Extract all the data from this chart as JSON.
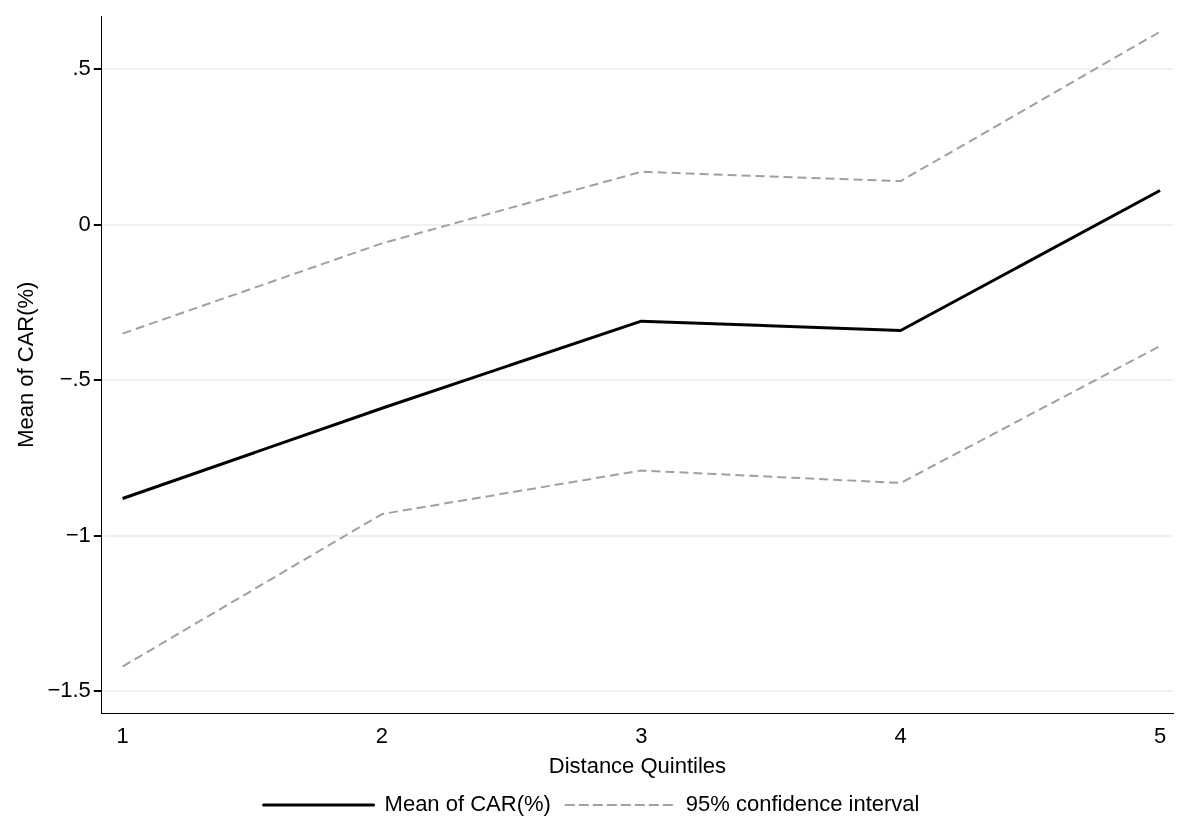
{
  "chart_data": {
    "type": "line",
    "xlabel": "Distance Quintiles",
    "ylabel": "Mean of CAR(%)",
    "x": [
      1,
      2,
      3,
      4,
      5
    ],
    "series": [
      {
        "name": "Mean of CAR(%)",
        "color": "#000000",
        "values": [
          -0.88,
          -0.59,
          -0.31,
          -0.34,
          0.11
        ],
        "line_style": "solid"
      },
      {
        "name": "95% confidence interval",
        "color": "#a0a0a0",
        "values": [
          -0.35,
          -0.06,
          0.17,
          0.14,
          0.62
        ],
        "line_style": "dashed"
      },
      {
        "color": "#a0a0a0",
        "values": [
          -1.42,
          -0.93,
          -0.79,
          -0.83,
          -0.39
        ],
        "line_style": "dashed"
      }
    ],
    "xlim": [
      0.92,
      5.05
    ],
    "ylim": [
      -1.57,
      0.67
    ],
    "xticks": [
      1,
      2,
      3,
      4,
      5
    ],
    "yticks": [
      {
        "value": -1.5,
        "label": "−1.5"
      },
      {
        "value": -1,
        "label": "−1"
      },
      {
        "value": -0.5,
        "label": "−.5"
      },
      0,
      {
        "value": 0.5,
        "label": ".5"
      }
    ],
    "grid": "y",
    "legend": "bottom",
    "marker": "none"
  }
}
